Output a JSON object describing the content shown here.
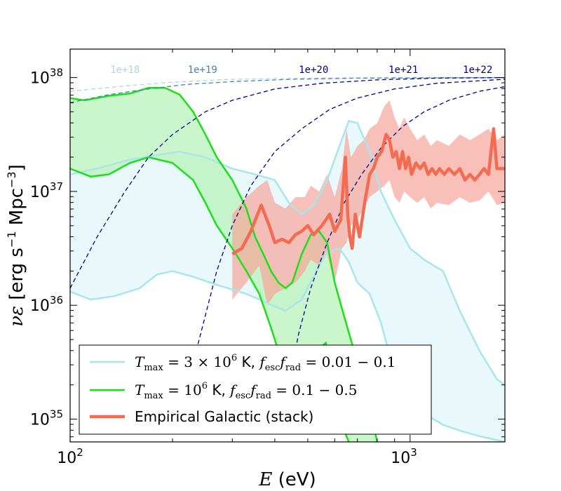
{
  "chart_data": {
    "type": "line",
    "xscale": "log",
    "yscale": "log",
    "xlim": [
      100,
      1900
    ],
    "ylim_exp": [
      34.8,
      38.25
    ],
    "xlabel": {
      "math": "E",
      "unit": " (eV)"
    },
    "ylabel": {
      "math": "νε",
      "sub": "ν",
      "text": " [erg s",
      "sup1": "−1",
      "text2": " Mpc",
      "sup2": "−3",
      "close": "]"
    },
    "x_ticks": [
      {
        "value": 100,
        "base": "10",
        "exp": "2"
      },
      {
        "value": 1000,
        "base": "10",
        "exp": "3"
      }
    ],
    "y_ticks": [
      {
        "exp_value": 35,
        "base": "10",
        "exp": "35"
      },
      {
        "exp_value": 36,
        "base": "10",
        "exp": "36"
      },
      {
        "exp_value": 37,
        "base": "10",
        "exp": "37"
      },
      {
        "exp_value": 38,
        "base": "10",
        "exp": "38"
      }
    ],
    "colors": {
      "cyan_line": "#a8e6ec",
      "cyan_fill": "#e2f6f8",
      "green_line": "#19e019",
      "green_fill": "#b9f3b9",
      "red_line": "#f36c52",
      "red_fill": "#f5a59a",
      "blue": "#00008b"
    },
    "dashed_curves": [
      {
        "label": "1e+18",
        "color": "#add8e6",
        "label_x": 145,
        "points": [
          [
            100,
            37.88
          ],
          [
            150,
            37.93
          ],
          [
            200,
            37.96
          ],
          [
            300,
            37.985
          ],
          [
            500,
            37.995
          ],
          [
            1000,
            38.0
          ],
          [
            1900,
            38.0
          ]
        ]
      },
      {
        "label": "1e+19",
        "color": "#4682b4",
        "label_x": 245,
        "points": [
          [
            100,
            37.78
          ],
          [
            130,
            37.85
          ],
          [
            170,
            37.9
          ],
          [
            220,
            37.94
          ],
          [
            300,
            37.965
          ],
          [
            450,
            37.985
          ],
          [
            700,
            37.995
          ],
          [
            1900,
            38.0
          ]
        ]
      },
      {
        "label": "1e+20",
        "color": "#00008b",
        "label_x": 520,
        "points": [
          [
            100,
            36.15
          ],
          [
            120,
            36.6
          ],
          [
            145,
            37.0
          ],
          [
            170,
            37.3
          ],
          [
            200,
            37.5
          ],
          [
            250,
            37.7
          ],
          [
            300,
            37.8
          ],
          [
            400,
            37.9
          ],
          [
            550,
            37.95
          ],
          [
            800,
            37.98
          ],
          [
            1200,
            37.995
          ],
          [
            1900,
            38.0
          ]
        ]
      },
      {
        "label": "1e+21",
        "color": "#00008b",
        "label_x": 955,
        "points": [
          [
            235,
            35.6
          ],
          [
            270,
            36.3
          ],
          [
            300,
            36.7
          ],
          [
            340,
            37.05
          ],
          [
            400,
            37.35
          ],
          [
            480,
            37.55
          ],
          [
            580,
            37.72
          ],
          [
            700,
            37.82
          ],
          [
            900,
            37.9
          ],
          [
            1200,
            37.95
          ],
          [
            1900,
            37.985
          ]
        ]
      },
      {
        "label": "1e+22",
        "color": "#00008b",
        "label_x": 1580,
        "points": [
          [
            435,
            35.25
          ],
          [
            470,
            35.75
          ],
          [
            510,
            36.15
          ],
          [
            570,
            36.55
          ],
          [
            640,
            36.9
          ],
          [
            720,
            37.15
          ],
          [
            820,
            37.38
          ],
          [
            950,
            37.57
          ],
          [
            1100,
            37.7
          ],
          [
            1300,
            37.8
          ],
          [
            1600,
            37.88
          ],
          [
            1900,
            37.92
          ]
        ]
      }
    ],
    "cyan_upper": [
      [
        100,
        37.15
      ],
      [
        120,
        37.2
      ],
      [
        150,
        37.28
      ],
      [
        180,
        37.32
      ],
      [
        210,
        37.35
      ],
      [
        250,
        37.3
      ],
      [
        300,
        37.2
      ],
      [
        350,
        37.15
      ],
      [
        400,
        37.1
      ],
      [
        440,
        36.9
      ],
      [
        480,
        36.8
      ],
      [
        520,
        36.88
      ],
      [
        570,
        37.1
      ],
      [
        620,
        37.4
      ],
      [
        660,
        37.62
      ],
      [
        700,
        37.6
      ],
      [
        760,
        37.35
      ],
      [
        820,
        37.0
      ],
      [
        900,
        36.75
      ],
      [
        1000,
        36.5
      ],
      [
        1100,
        36.4
      ],
      [
        1250,
        36.3
      ],
      [
        1400,
        35.95
      ],
      [
        1600,
        35.6
      ],
      [
        1800,
        35.35
      ],
      [
        1900,
        35.3
      ]
    ],
    "cyan_lower": [
      [
        100,
        36.12
      ],
      [
        115,
        36.05
      ],
      [
        135,
        36.08
      ],
      [
        160,
        36.15
      ],
      [
        180,
        36.27
      ],
      [
        200,
        36.3
      ],
      [
        230,
        36.25
      ],
      [
        270,
        36.18
      ],
      [
        330,
        36.1
      ],
      [
        380,
        36.02
      ],
      [
        430,
        35.95
      ],
      [
        480,
        36.05
      ],
      [
        530,
        36.3
      ],
      [
        570,
        36.47
      ],
      [
        620,
        36.5
      ],
      [
        660,
        36.38
      ],
      [
        700,
        36.2
      ],
      [
        760,
        36.1
      ],
      [
        820,
        35.85
      ],
      [
        900,
        35.4
      ],
      [
        1000,
        35.2
      ],
      [
        1100,
        35.05
      ],
      [
        1250,
        34.95
      ],
      [
        1400,
        34.9
      ],
      [
        1600,
        34.85
      ],
      [
        1900,
        34.8
      ]
    ],
    "green_upper": [
      [
        100,
        37.82
      ],
      [
        110,
        37.8
      ],
      [
        130,
        37.84
      ],
      [
        150,
        37.86
      ],
      [
        170,
        37.91
      ],
      [
        190,
        37.91
      ],
      [
        210,
        37.85
      ],
      [
        230,
        37.7
      ],
      [
        250,
        37.5
      ],
      [
        270,
        37.3
      ],
      [
        300,
        37.1
      ],
      [
        330,
        36.85
      ],
      [
        350,
        36.6
      ],
      [
        370,
        36.45
      ],
      [
        390,
        36.3
      ],
      [
        410,
        36.2
      ],
      [
        430,
        36.15
      ],
      [
        450,
        36.2
      ],
      [
        480,
        36.45
      ],
      [
        510,
        36.62
      ],
      [
        540,
        36.65
      ],
      [
        570,
        36.55
      ],
      [
        600,
        36.2
      ],
      [
        640,
        35.9
      ],
      [
        700,
        35.5
      ],
      [
        760,
        35.1
      ],
      [
        800,
        34.8
      ]
    ],
    "green_lower": [
      [
        100,
        37.2
      ],
      [
        115,
        37.13
      ],
      [
        130,
        37.15
      ],
      [
        150,
        37.25
      ],
      [
        170,
        37.3
      ],
      [
        200,
        37.25
      ],
      [
        230,
        37.1
      ],
      [
        250,
        36.9
      ],
      [
        270,
        36.7
      ],
      [
        300,
        36.5
      ],
      [
        330,
        36.3
      ],
      [
        360,
        36.1
      ],
      [
        390,
        35.8
      ],
      [
        420,
        35.5
      ],
      [
        450,
        35.3
      ],
      [
        480,
        35.1
      ],
      [
        510,
        35.15
      ],
      [
        540,
        35.62
      ],
      [
        565,
        35.67
      ],
      [
        590,
        35.4
      ],
      [
        620,
        35.0
      ],
      [
        660,
        34.8
      ]
    ],
    "red_upper": [
      [
        300,
        36.8
      ],
      [
        330,
        36.95
      ],
      [
        360,
        37.05
      ],
      [
        380,
        37.1
      ],
      [
        400,
        36.9
      ],
      [
        430,
        36.85
      ],
      [
        460,
        36.95
      ],
      [
        490,
        36.95
      ],
      [
        510,
        37.05
      ],
      [
        540,
        37.0
      ],
      [
        570,
        37.15
      ],
      [
        600,
        36.95
      ],
      [
        630,
        37.2
      ],
      [
        650,
        37.55
      ],
      [
        670,
        37.3
      ],
      [
        700,
        37.4
      ],
      [
        730,
        37.45
      ],
      [
        760,
        37.55
      ],
      [
        800,
        37.6
      ],
      [
        840,
        37.75
      ],
      [
        870,
        37.8
      ],
      [
        900,
        37.65
      ],
      [
        930,
        37.55
      ],
      [
        960,
        37.65
      ],
      [
        1000,
        37.55
      ],
      [
        1050,
        37.45
      ],
      [
        1100,
        37.5
      ],
      [
        1150,
        37.4
      ],
      [
        1200,
        37.45
      ],
      [
        1300,
        37.4
      ],
      [
        1400,
        37.5
      ],
      [
        1500,
        37.45
      ],
      [
        1600,
        37.5
      ],
      [
        1700,
        37.55
      ],
      [
        1800,
        37.45
      ],
      [
        1900,
        37.5
      ]
    ],
    "red_lower": [
      [
        300,
        36.05
      ],
      [
        330,
        36.2
      ],
      [
        360,
        36.35
      ],
      [
        380,
        36.0
      ],
      [
        400,
        36.1
      ],
      [
        430,
        36.15
      ],
      [
        460,
        36.2
      ],
      [
        490,
        36.3
      ],
      [
        510,
        36.4
      ],
      [
        540,
        36.35
      ],
      [
        570,
        36.45
      ],
      [
        600,
        36.2
      ],
      [
        630,
        36.5
      ],
      [
        650,
        36.55
      ],
      [
        670,
        36.7
      ],
      [
        700,
        36.75
      ],
      [
        730,
        36.85
      ],
      [
        760,
        36.95
      ],
      [
        800,
        37.0
      ],
      [
        840,
        37.05
      ],
      [
        870,
        37.1
      ],
      [
        900,
        36.95
      ],
      [
        930,
        36.9
      ],
      [
        960,
        37.0
      ],
      [
        1000,
        36.95
      ],
      [
        1050,
        36.9
      ],
      [
        1100,
        36.95
      ],
      [
        1150,
        36.85
      ],
      [
        1200,
        36.9
      ],
      [
        1300,
        36.88
      ],
      [
        1400,
        36.95
      ],
      [
        1500,
        36.9
      ],
      [
        1600,
        36.92
      ],
      [
        1700,
        37.0
      ],
      [
        1800,
        36.88
      ],
      [
        1900,
        36.9
      ]
    ],
    "red_line": [
      [
        300,
        36.45
      ],
      [
        320,
        36.5
      ],
      [
        340,
        36.65
      ],
      [
        365,
        36.88
      ],
      [
        385,
        36.7
      ],
      [
        400,
        36.55
      ],
      [
        420,
        36.58
      ],
      [
        440,
        36.55
      ],
      [
        460,
        36.62
      ],
      [
        480,
        36.65
      ],
      [
        500,
        36.7
      ],
      [
        520,
        36.62
      ],
      [
        550,
        36.7
      ],
      [
        580,
        36.8
      ],
      [
        600,
        36.65
      ],
      [
        625,
        36.75
      ],
      [
        645,
        37.3
      ],
      [
        655,
        36.8
      ],
      [
        665,
        36.6
      ],
      [
        675,
        36.5
      ],
      [
        690,
        36.8
      ],
      [
        710,
        36.6
      ],
      [
        735,
        36.9
      ],
      [
        760,
        37.15
      ],
      [
        780,
        37.2
      ],
      [
        800,
        37.3
      ],
      [
        825,
        37.35
      ],
      [
        850,
        37.5
      ],
      [
        870,
        37.45
      ],
      [
        890,
        37.3
      ],
      [
        910,
        37.35
      ],
      [
        930,
        37.2
      ],
      [
        950,
        37.35
      ],
      [
        970,
        37.2
      ],
      [
        990,
        37.3
      ],
      [
        1010,
        37.15
      ],
      [
        1040,
        37.25
      ],
      [
        1070,
        37.2
      ],
      [
        1100,
        37.25
      ],
      [
        1130,
        37.15
      ],
      [
        1160,
        37.2
      ],
      [
        1190,
        37.15
      ],
      [
        1220,
        37.2
      ],
      [
        1260,
        37.15
      ],
      [
        1300,
        37.2
      ],
      [
        1350,
        37.15
      ],
      [
        1400,
        37.2
      ],
      [
        1450,
        37.1
      ],
      [
        1500,
        37.15
      ],
      [
        1550,
        37.1
      ],
      [
        1600,
        37.15
      ],
      [
        1650,
        37.2
      ],
      [
        1700,
        37.15
      ],
      [
        1760,
        37.55
      ],
      [
        1800,
        37.2
      ],
      [
        1900,
        37.2
      ]
    ],
    "legend": [
      {
        "math": "T",
        "sub": "max",
        "rest": " = 3 × 10",
        "sup": "6",
        "unit": " K, ",
        "f1": "f",
        "f1sub": "esc",
        "f2": "f",
        "f2sub": "rad",
        "range": " = 0.01 − 0.1",
        "key": "cyan"
      },
      {
        "math": "T",
        "sub": "max",
        "rest": " = 10",
        "sup": "6",
        "unit": " K, ",
        "f1": "f",
        "f1sub": "esc",
        "f2": "f",
        "f2sub": "rad",
        "range": " = 0.1 − 0.5",
        "key": "green"
      },
      {
        "text": "Empirical Galactic (stack)",
        "key": "red"
      }
    ]
  }
}
